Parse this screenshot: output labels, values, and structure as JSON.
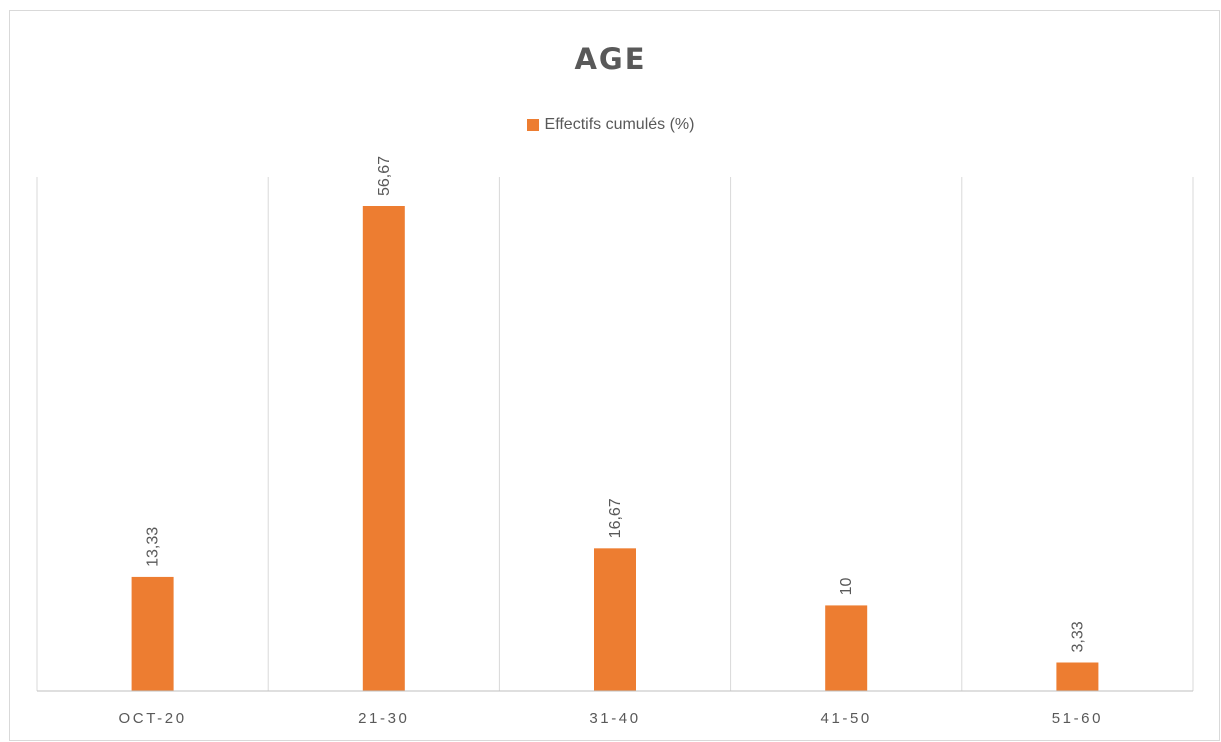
{
  "chart_data": {
    "type": "bar",
    "title": "AGE",
    "xlabel": "",
    "ylabel": "",
    "categories": [
      "OCT-20",
      "21-30",
      "31-40",
      "41-50",
      "51-60"
    ],
    "series": [
      {
        "name": "Effectifs cumulés (%)",
        "values": [
          13.33,
          56.67,
          16.67,
          10,
          3.33
        ],
        "labels": [
          "13,33",
          "56,67",
          "16,67",
          "10",
          "3,33"
        ],
        "color": "#ED7D31"
      }
    ],
    "ylim": [
      0,
      60
    ],
    "grid": "vertical category separators",
    "legend": "top-center"
  }
}
